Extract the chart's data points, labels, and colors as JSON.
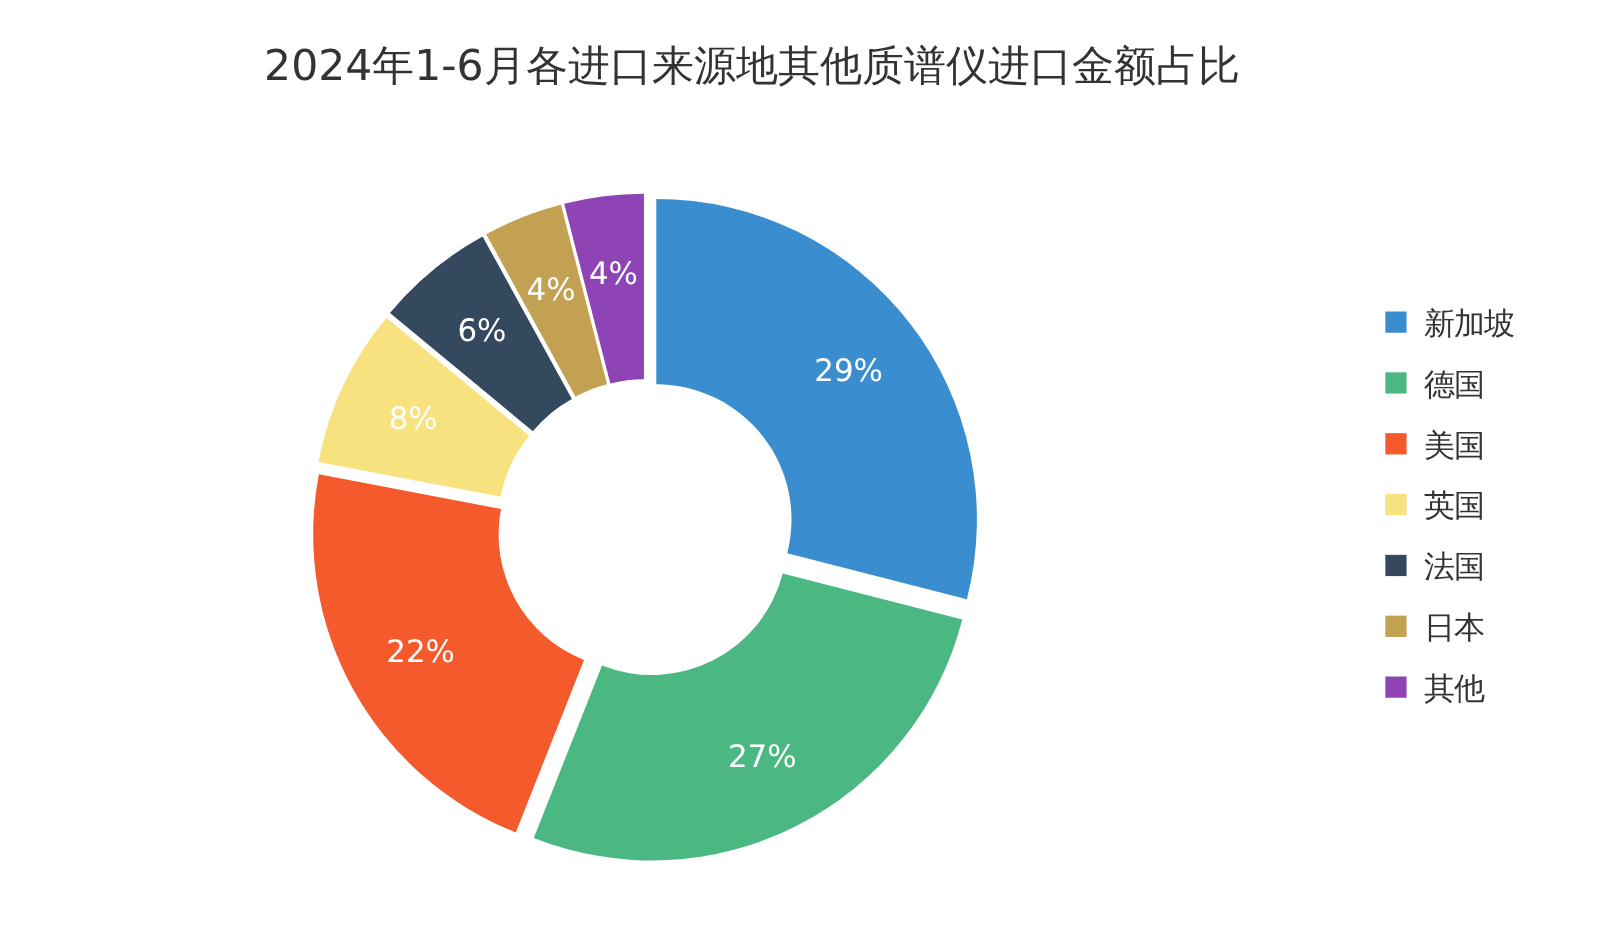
{
  "chart_data": {
    "type": "donut",
    "title": "2024年1-6月各进口来源地其他质谱仪进口金额占比",
    "categories": [
      "新加坡",
      "德国",
      "美国",
      "英国",
      "法国",
      "日本",
      "其他"
    ],
    "values": [
      29,
      27,
      22,
      8,
      6,
      4,
      4
    ],
    "colors": [
      "#3a8ed0",
      "#4bb882",
      "#f55a2c",
      "#f8e27f",
      "#34495e",
      "#c3a152",
      "#8e44b5"
    ],
    "value_labels": [
      "29%",
      "27%",
      "22%",
      "8%",
      "6%",
      "4%",
      "4%"
    ],
    "legend": "right"
  }
}
